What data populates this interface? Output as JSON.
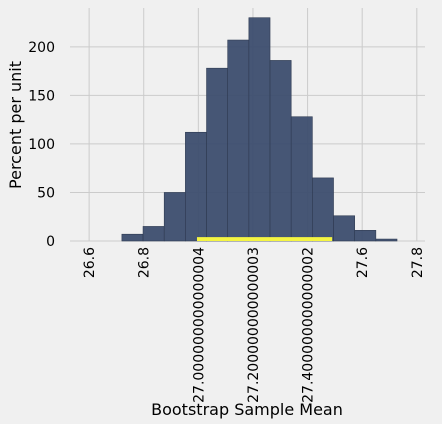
{
  "chart_data": {
    "type": "histogram",
    "title": "",
    "xlabel": "Bootstrap Sample Mean",
    "ylabel": "Percent per unit",
    "xlim": [
      26.53,
      27.83
    ],
    "ylim": [
      0,
      240
    ],
    "grid": true,
    "bar_color": "#3c4d6e",
    "bar_edge_color": "#2f3b52",
    "highlight_color": "#f5f542",
    "bin_width": 0.0775,
    "bins": [
      {
        "x0": 26.72,
        "value": 7
      },
      {
        "x0": 26.7975,
        "value": 15
      },
      {
        "x0": 26.875,
        "value": 50
      },
      {
        "x0": 26.9525,
        "value": 112
      },
      {
        "x0": 27.03,
        "value": 178
      },
      {
        "x0": 27.1075,
        "value": 207
      },
      {
        "x0": 27.185,
        "value": 230
      },
      {
        "x0": 27.2625,
        "value": 186
      },
      {
        "x0": 27.34,
        "value": 128
      },
      {
        "x0": 27.4175,
        "value": 65
      },
      {
        "x0": 27.495,
        "value": 26
      },
      {
        "x0": 27.5725,
        "value": 11
      },
      {
        "x0": 27.65,
        "value": 2
      }
    ],
    "interval": {
      "x0": 26.995,
      "x1": 27.49,
      "height": 4
    },
    "x_ticks": [
      {
        "value": 26.6,
        "label": "26.6"
      },
      {
        "value": 26.8,
        "label": "26.8"
      },
      {
        "value": 27.0,
        "label": "27.000000000000004"
      },
      {
        "value": 27.2,
        "label": "27.200000000000003"
      },
      {
        "value": 27.4,
        "label": "27.400000000000002"
      },
      {
        "value": 27.6,
        "label": "27.6"
      },
      {
        "value": 27.8,
        "label": "27.8"
      }
    ],
    "y_ticks": [
      {
        "value": 0,
        "label": "0"
      },
      {
        "value": 50,
        "label": "50"
      },
      {
        "value": 100,
        "label": "100"
      },
      {
        "value": 150,
        "label": "150"
      },
      {
        "value": 200,
        "label": "200"
      }
    ]
  }
}
